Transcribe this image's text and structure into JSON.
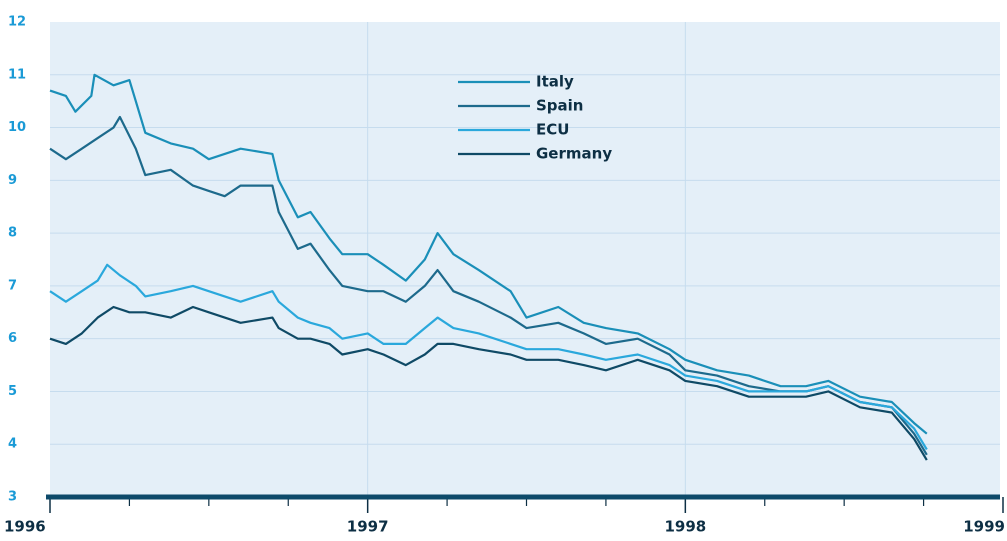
{
  "chart_data": {
    "type": "line",
    "xlim": [
      1996,
      1999
    ],
    "xticks": [
      1996,
      1997,
      1998,
      1999
    ],
    "xminorticks": [
      1996.25,
      1996.5,
      1996.75,
      1997.25,
      1997.5,
      1997.75,
      1998.25,
      1998.5,
      1998.75
    ],
    "ylim": [
      3,
      12
    ],
    "yticks": [
      3,
      4,
      5,
      6,
      7,
      8,
      9,
      10,
      11,
      12
    ],
    "grid": true,
    "legend": "top-center",
    "series": [
      {
        "name": "Italy",
        "color": "#1a8fb8",
        "x": [
          1996.0,
          1996.05,
          1996.08,
          1996.13,
          1996.14,
          1996.2,
          1996.25,
          1996.27,
          1996.3,
          1996.38,
          1996.45,
          1996.5,
          1996.55,
          1996.6,
          1996.7,
          1996.72,
          1996.78,
          1996.82,
          1996.88,
          1996.92,
          1997.0,
          1997.05,
          1997.12,
          1997.18,
          1997.22,
          1997.27,
          1997.35,
          1997.45,
          1997.5,
          1997.6,
          1997.68,
          1997.75,
          1997.85,
          1997.95,
          1998.0,
          1998.1,
          1998.2,
          1998.3,
          1998.38,
          1998.45,
          1998.55,
          1998.65,
          1998.72,
          1998.76
        ],
        "values": [
          10.7,
          10.6,
          10.3,
          10.6,
          11.0,
          10.8,
          10.9,
          10.5,
          9.9,
          9.7,
          9.6,
          9.4,
          9.5,
          9.6,
          9.5,
          9.0,
          8.3,
          8.4,
          7.9,
          7.6,
          7.6,
          7.4,
          7.1,
          7.5,
          8.0,
          7.6,
          7.3,
          6.9,
          6.4,
          6.6,
          6.3,
          6.2,
          6.1,
          5.8,
          5.6,
          5.4,
          5.3,
          5.1,
          5.1,
          5.2,
          4.9,
          4.8,
          4.4,
          4.2
        ]
      },
      {
        "name": "Spain",
        "color": "#1d6a8c",
        "x": [
          1996.0,
          1996.05,
          1996.1,
          1996.15,
          1996.2,
          1996.22,
          1996.27,
          1996.3,
          1996.38,
          1996.45,
          1996.5,
          1996.55,
          1996.6,
          1996.7,
          1996.72,
          1996.78,
          1996.82,
          1996.88,
          1996.92,
          1997.0,
          1997.05,
          1997.12,
          1997.18,
          1997.22,
          1997.27,
          1997.35,
          1997.45,
          1997.5,
          1997.6,
          1997.68,
          1997.75,
          1997.85,
          1997.95,
          1998.0,
          1998.1,
          1998.2,
          1998.3,
          1998.38,
          1998.45,
          1998.55,
          1998.65,
          1998.72,
          1998.76
        ],
        "values": [
          9.6,
          9.4,
          9.6,
          9.8,
          10.0,
          10.2,
          9.6,
          9.1,
          9.2,
          8.9,
          8.8,
          8.7,
          8.9,
          8.9,
          8.4,
          7.7,
          7.8,
          7.3,
          7.0,
          6.9,
          6.9,
          6.7,
          7.0,
          7.3,
          6.9,
          6.7,
          6.4,
          6.2,
          6.3,
          6.1,
          5.9,
          6.0,
          5.7,
          5.4,
          5.3,
          5.1,
          5.0,
          5.0,
          5.1,
          4.8,
          4.7,
          4.2,
          3.8
        ]
      },
      {
        "name": "ECU",
        "color": "#2aa8dc",
        "x": [
          1996.0,
          1996.05,
          1996.1,
          1996.15,
          1996.18,
          1996.22,
          1996.27,
          1996.3,
          1996.38,
          1996.45,
          1996.5,
          1996.55,
          1996.6,
          1996.7,
          1996.72,
          1996.78,
          1996.82,
          1996.88,
          1996.92,
          1997.0,
          1997.05,
          1997.12,
          1997.18,
          1997.22,
          1997.27,
          1997.35,
          1997.45,
          1997.5,
          1997.6,
          1997.68,
          1997.75,
          1997.85,
          1997.95,
          1998.0,
          1998.1,
          1998.2,
          1998.3,
          1998.38,
          1998.45,
          1998.55,
          1998.65,
          1998.72,
          1998.76
        ],
        "values": [
          6.9,
          6.7,
          6.9,
          7.1,
          7.4,
          7.2,
          7.0,
          6.8,
          6.9,
          7.0,
          6.9,
          6.8,
          6.7,
          6.9,
          6.7,
          6.4,
          6.3,
          6.2,
          6.0,
          6.1,
          5.9,
          5.9,
          6.2,
          6.4,
          6.2,
          6.1,
          5.9,
          5.8,
          5.8,
          5.7,
          5.6,
          5.7,
          5.5,
          5.3,
          5.2,
          5.0,
          5.0,
          5.0,
          5.1,
          4.8,
          4.7,
          4.3,
          3.9
        ]
      },
      {
        "name": "Germany",
        "color": "#0f4a66",
        "x": [
          1996.0,
          1996.05,
          1996.1,
          1996.15,
          1996.2,
          1996.25,
          1996.3,
          1996.38,
          1996.45,
          1996.5,
          1996.55,
          1996.6,
          1996.7,
          1996.72,
          1996.78,
          1996.82,
          1996.88,
          1996.92,
          1997.0,
          1997.05,
          1997.12,
          1997.18,
          1997.22,
          1997.27,
          1997.35,
          1997.45,
          1997.5,
          1997.6,
          1997.68,
          1997.75,
          1997.85,
          1997.95,
          1998.0,
          1998.1,
          1998.2,
          1998.3,
          1998.38,
          1998.45,
          1998.55,
          1998.65,
          1998.72,
          1998.76
        ],
        "values": [
          6.0,
          5.9,
          6.1,
          6.4,
          6.6,
          6.5,
          6.5,
          6.4,
          6.6,
          6.5,
          6.4,
          6.3,
          6.4,
          6.2,
          6.0,
          6.0,
          5.9,
          5.7,
          5.8,
          5.7,
          5.5,
          5.7,
          5.9,
          5.9,
          5.8,
          5.7,
          5.6,
          5.6,
          5.5,
          5.4,
          5.6,
          5.4,
          5.2,
          5.1,
          4.9,
          4.9,
          4.9,
          5.0,
          4.7,
          4.6,
          4.1,
          3.7
        ]
      }
    ]
  }
}
